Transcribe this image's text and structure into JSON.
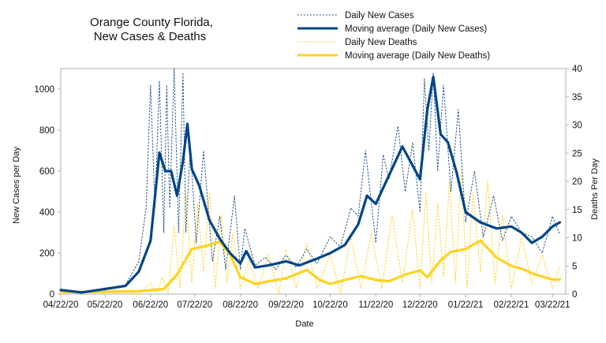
{
  "chart_data": {
    "type": "line",
    "title_lines": [
      "Orange County Florida,",
      "New Cases & Deaths"
    ],
    "xlabel": "Date",
    "ylabel_left": "New Cases per Day",
    "ylabel_right": "Deaths Per Day",
    "x_tick_labels": [
      "04/22/20",
      "05/22/20",
      "06/22/20",
      "07/22/20",
      "08/22/20",
      "09/22/20",
      "10/22/20",
      "11/22/20",
      "12/22/20",
      "01/22/21",
      "02/22/21",
      "03/22/21"
    ],
    "y_left_ticks": [
      "0",
      "200",
      "400",
      "600",
      "800",
      "1000"
    ],
    "y_right_ticks": [
      "0",
      "5",
      "10",
      "15",
      "20",
      "25",
      "30",
      "35",
      "40"
    ],
    "ylim_left": [
      0,
      1100
    ],
    "ylim_right": [
      0,
      40
    ],
    "grid": false,
    "legend_position": "top-right",
    "legend": [
      {
        "label": "Daily New Cases",
        "color": "#1f4e8c",
        "style": "dotted"
      },
      {
        "label": "Moving average (Daily New Cases)",
        "color": "#004586",
        "style": "solid"
      },
      {
        "label": "Daily New Deaths",
        "color": "#ffd320",
        "style": "dotted"
      },
      {
        "label": "Moving average (Daily New Deaths)",
        "color": "#ffd320",
        "style": "solid"
      }
    ],
    "series": [
      {
        "name": "Moving average (Daily New Cases)",
        "axis": "left",
        "color": "#004586",
        "x": [
          "04/22/20",
          "05/06/20",
          "05/22/20",
          "06/05/20",
          "06/14/20",
          "06/22/20",
          "06/28/20",
          "07/02/20",
          "07/06/20",
          "07/10/20",
          "07/14/20",
          "07/17/20",
          "07/20/20",
          "07/25/20",
          "08/01/20",
          "08/08/20",
          "08/15/20",
          "08/22/20",
          "08/26/20",
          "09/01/20",
          "09/10/20",
          "09/22/20",
          "10/01/20",
          "10/12/20",
          "10/22/20",
          "11/01/20",
          "11/10/20",
          "11/16/20",
          "11/22/20",
          "12/01/20",
          "12/10/20",
          "12/16/20",
          "12/22/20",
          "12/27/20",
          "12/31/20",
          "01/05/21",
          "01/10/21",
          "01/16/21",
          "01/22/21",
          "02/01/21",
          "02/12/21",
          "02/22/21",
          "03/01/21",
          "03/08/21",
          "03/15/21",
          "03/22/21",
          "03/27/21"
        ],
        "values": [
          20,
          8,
          25,
          40,
          110,
          260,
          690,
          600,
          600,
          480,
          650,
          830,
          610,
          530,
          360,
          270,
          200,
          150,
          210,
          130,
          140,
          160,
          140,
          170,
          200,
          240,
          340,
          480,
          440,
          580,
          720,
          640,
          560,
          900,
          1060,
          780,
          740,
          590,
          400,
          350,
          320,
          330,
          300,
          250,
          280,
          330,
          350
        ]
      },
      {
        "name": "Moving average (Daily New Deaths)",
        "axis": "right",
        "color": "#ffd320",
        "x": [
          "04/22/20",
          "05/22/20",
          "06/14/20",
          "06/22/20",
          "07/01/20",
          "07/10/20",
          "07/20/20",
          "07/29/20",
          "08/08/20",
          "08/15/20",
          "08/22/20",
          "09/01/20",
          "09/15/20",
          "09/22/20",
          "10/06/20",
          "10/15/20",
          "10/22/20",
          "11/01/20",
          "11/12/20",
          "11/22/20",
          "12/01/20",
          "12/12/20",
          "12/22/20",
          "12/27/20",
          "01/05/21",
          "01/12/21",
          "01/22/21",
          "02/01/21",
          "02/12/21",
          "02/22/21",
          "03/01/21",
          "03/10/21",
          "03/22/21",
          "03/27/21"
        ],
        "values": [
          0.4,
          0.4,
          0.5,
          0.7,
          0.9,
          3.5,
          8.0,
          8.5,
          9.3,
          7.0,
          3.0,
          1.8,
          2.5,
          2.8,
          4.3,
          2.5,
          1.8,
          2.5,
          3.2,
          2.5,
          2.3,
          3.5,
          4.2,
          3.0,
          6.0,
          7.5,
          8.0,
          9.5,
          6.5,
          5.0,
          4.5,
          3.5,
          2.6,
          2.6
        ]
      },
      {
        "name": "Daily New Cases",
        "axis": "left",
        "color": "#1f4e8c",
        "x": [
          "04/22/20",
          "05/06/20",
          "05/22/20",
          "06/05/20",
          "06/14/20",
          "06/19/20",
          "06/22/20",
          "06/25/20",
          "06/28/20",
          "07/01/20",
          "07/03/20",
          "07/05/20",
          "07/08/20",
          "07/11/20",
          "07/14/20",
          "07/16/20",
          "07/19/20",
          "07/23/20",
          "07/28/20",
          "08/03/20",
          "08/08/20",
          "08/12/20",
          "08/18/20",
          "08/22/20",
          "08/25/20",
          "09/01/20",
          "09/08/20",
          "09/15/20",
          "09/22/20",
          "09/29/20",
          "10/06/20",
          "10/13/20",
          "10/22/20",
          "10/29/20",
          "11/05/20",
          "11/10/20",
          "11/15/20",
          "11/22/20",
          "11/27/20",
          "12/01/20",
          "12/07/20",
          "12/12/20",
          "12/17/20",
          "12/22/20",
          "12/25/20",
          "12/28/20",
          "12/31/20",
          "01/03/21",
          "01/07/21",
          "01/12/21",
          "01/17/21",
          "01/22/21",
          "01/28/21",
          "02/03/21",
          "02/10/21",
          "02/16/21",
          "02/22/21",
          "03/01/21",
          "03/08/21",
          "03/15/21",
          "03/22/21",
          "03/27/21"
        ],
        "values": [
          25,
          10,
          20,
          45,
          160,
          420,
          1020,
          420,
          1040,
          300,
          1020,
          420,
          1100,
          300,
          1080,
          300,
          720,
          250,
          700,
          160,
          380,
          120,
          480,
          120,
          320,
          140,
          180,
          120,
          190,
          130,
          220,
          150,
          280,
          230,
          420,
          380,
          700,
          250,
          680,
          560,
          820,
          500,
          740,
          400,
          1050,
          700,
          1080,
          600,
          1020,
          500,
          900,
          350,
          600,
          280,
          480,
          260,
          380,
          300,
          280,
          200,
          380,
          290
        ]
      },
      {
        "name": "Daily New Deaths",
        "axis": "right",
        "color": "#ffd320",
        "x": [
          "04/22/20",
          "05/22/20",
          "06/14/20",
          "06/22/20",
          "06/26/20",
          "06/30/20",
          "07/04/20",
          "07/08/20",
          "07/12/20",
          "07/16/20",
          "07/20/20",
          "07/24/20",
          "07/28/20",
          "08/01/20",
          "08/05/20",
          "08/09/20",
          "08/13/20",
          "08/17/20",
          "08/22/20",
          "08/28/20",
          "09/03/20",
          "09/10/20",
          "09/17/20",
          "09/22/20",
          "09/29/20",
          "10/06/20",
          "10/13/20",
          "10/22/20",
          "10/29/20",
          "11/05/20",
          "11/12/20",
          "11/19/20",
          "11/26/20",
          "12/03/20",
          "12/10/20",
          "12/17/20",
          "12/22/20",
          "12/26/20",
          "12/30/20",
          "01/03/21",
          "01/07/21",
          "01/11/21",
          "01/15/21",
          "01/19/21",
          "01/23/21",
          "01/27/21",
          "02/01/21",
          "02/06/21",
          "02/11/21",
          "02/16/21",
          "02/22/21",
          "03/01/21",
          "03/08/21",
          "03/15/21",
          "03/22/21",
          "03/27/21"
        ],
        "values": [
          0,
          1,
          0,
          2,
          0,
          3,
          0,
          12,
          1,
          18,
          2,
          16,
          4,
          18,
          1,
          14,
          2,
          11,
          1,
          6,
          1,
          7,
          0,
          8,
          1,
          9,
          1,
          7,
          0,
          10,
          1,
          11,
          1,
          14,
          2,
          15,
          1,
          18,
          2,
          16,
          3,
          20,
          2,
          22,
          1,
          18,
          4,
          20,
          2,
          14,
          1,
          10,
          2,
          7,
          1,
          5
        ]
      }
    ]
  }
}
